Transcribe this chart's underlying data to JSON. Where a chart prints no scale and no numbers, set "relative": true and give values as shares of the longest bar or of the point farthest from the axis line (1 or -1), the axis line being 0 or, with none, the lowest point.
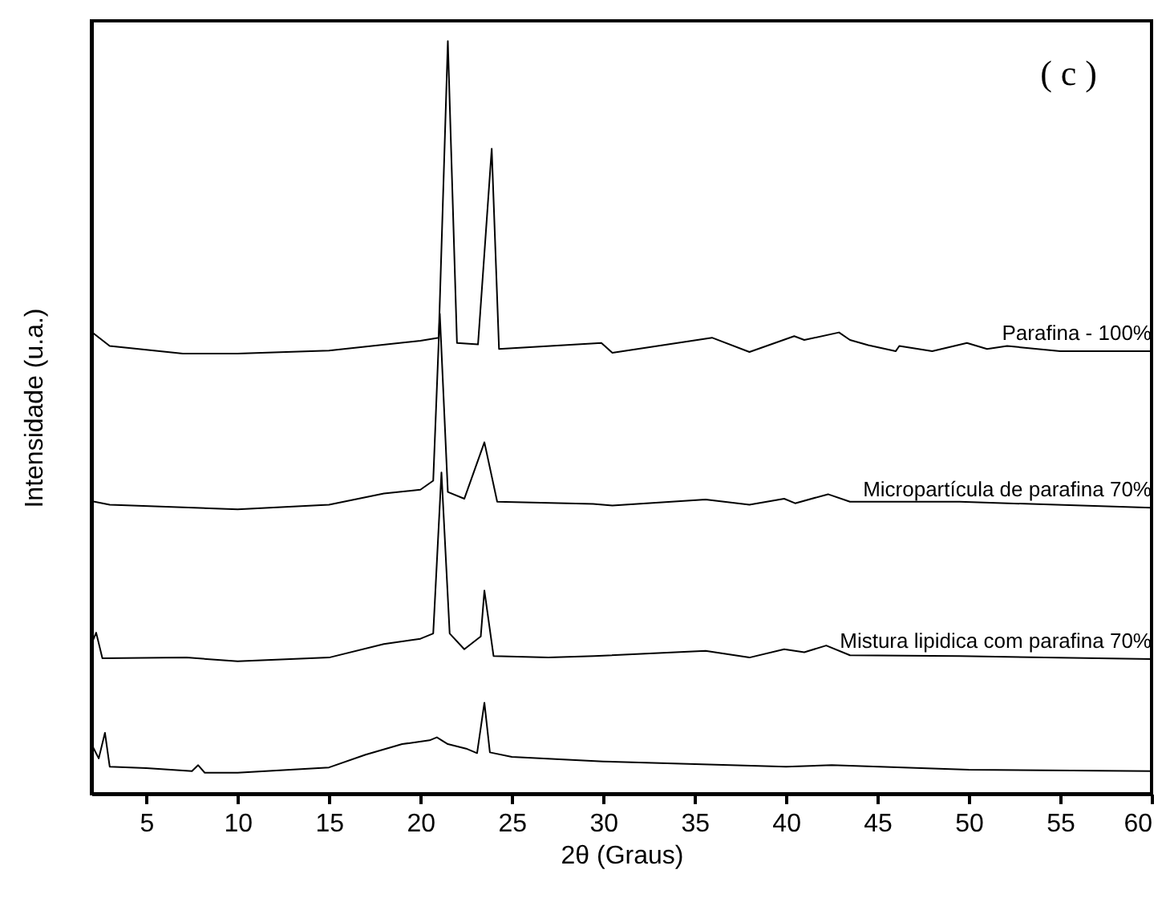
{
  "chart_data": {
    "type": "line",
    "xlabel": "2θ (Graus)",
    "ylabel": "Intensidade (u.a.)",
    "relative": true,
    "xlim": [
      2,
      60
    ],
    "xticks": [
      5,
      10,
      15,
      20,
      25,
      30,
      35,
      40,
      45,
      50,
      55,
      60
    ],
    "grid": false,
    "marker": "none",
    "line_style": "solid",
    "annotations": [
      "( c )"
    ],
    "series": [
      {
        "name": "Parafina - 100%",
        "color": "#000000",
        "x": [
          2,
          3,
          7,
          10,
          15,
          20,
          21,
          21.5,
          22,
          23.15,
          23.9,
          24.3,
          29.9,
          30.5,
          35.95,
          38,
          40.45,
          41,
          42.9,
          43.5,
          44.5,
          46,
          46.2,
          48,
          49.9,
          51,
          52.1,
          55,
          60
        ],
        "values": [
          0.614,
          0.595,
          0.585,
          0.585,
          0.589,
          0.602,
          0.606,
          1.0,
          0.599,
          0.597,
          0.857,
          0.591,
          0.599,
          0.586,
          0.606,
          0.587,
          0.608,
          0.603,
          0.613,
          0.603,
          0.596,
          0.588,
          0.595,
          0.588,
          0.599,
          0.591,
          0.595,
          0.588,
          0.588
        ]
      },
      {
        "name": "Micropartícula de parafina 70%",
        "color": "#000000",
        "x": [
          2,
          3,
          10,
          15,
          18,
          20,
          20.7,
          21.06,
          21.5,
          22.4,
          23.5,
          24.2,
          29.45,
          30.5,
          35.6,
          38,
          39.9,
          40.5,
          42.3,
          43.5,
          49.5,
          60
        ],
        "values": [
          0.389,
          0.384,
          0.378,
          0.384,
          0.399,
          0.404,
          0.416,
          0.638,
          0.401,
          0.392,
          0.467,
          0.388,
          0.385,
          0.383,
          0.391,
          0.384,
          0.392,
          0.386,
          0.398,
          0.388,
          0.388,
          0.38
        ]
      },
      {
        "name": "Mistura  lipidica com parafina 70%",
        "color": "#000000",
        "x": [
          2,
          2.26,
          2.6,
          7.2,
          10,
          15,
          18,
          20,
          20.7,
          21.15,
          21.6,
          22.4,
          23.3,
          23.5,
          24,
          27,
          29.5,
          35.6,
          38,
          39.9,
          41,
          42.2,
          43.5,
          49.5,
          60
        ],
        "values": [
          0.199,
          0.214,
          0.18,
          0.181,
          0.176,
          0.181,
          0.199,
          0.206,
          0.213,
          0.427,
          0.213,
          0.192,
          0.209,
          0.27,
          0.183,
          0.181,
          0.183,
          0.19,
          0.181,
          0.192,
          0.188,
          0.197,
          0.184,
          0.183,
          0.179
        ]
      },
      {
        "color": "#000000",
        "x": [
          2,
          2.4,
          2.74,
          3,
          5,
          7.5,
          7.84,
          8.2,
          10,
          15,
          17,
          19,
          20.5,
          20.9,
          21.5,
          22.5,
          23.1,
          23.5,
          23.8,
          25,
          30,
          40,
          42.5,
          50,
          60
        ],
        "values": [
          0.066,
          0.047,
          0.081,
          0.036,
          0.034,
          0.03,
          0.038,
          0.028,
          0.028,
          0.035,
          0.052,
          0.066,
          0.071,
          0.075,
          0.066,
          0.06,
          0.054,
          0.121,
          0.055,
          0.049,
          0.043,
          0.036,
          0.038,
          0.032,
          0.03
        ]
      }
    ]
  }
}
